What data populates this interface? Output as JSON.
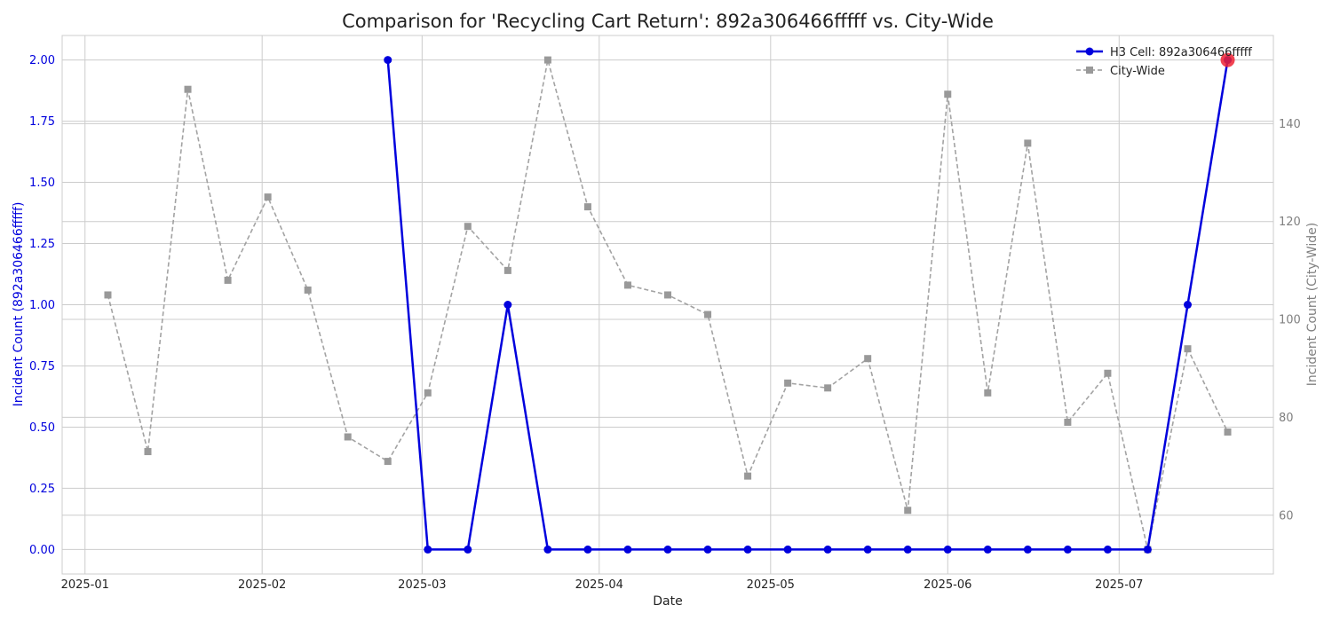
{
  "chart_data": {
    "type": "line",
    "title": "Comparison for 'Recycling Cart Return': 892a306466fffff vs. City-Wide",
    "xlabel": "Date",
    "ylabel_left": "Incident Count (892a306466fffff)",
    "ylabel_right": "Incident Count (City-Wide)",
    "x_ticks": [
      "2025-01",
      "2025-02",
      "2025-03",
      "2025-04",
      "2025-05",
      "2025-06",
      "2025-07"
    ],
    "y_left_ticks": [
      "0.00",
      "0.25",
      "0.50",
      "0.75",
      "1.00",
      "1.25",
      "1.50",
      "1.75",
      "2.00"
    ],
    "y_right_ticks": [
      "60",
      "80",
      "100",
      "120",
      "140"
    ],
    "ylim_left": [
      -0.1,
      2.1
    ],
    "ylim_right": [
      48,
      158
    ],
    "xlim": [
      "2024-12-28",
      "2025-07-28"
    ],
    "grid": true,
    "legend_position": "top-right",
    "series": [
      {
        "name": "H3 Cell: 892a306466fffff",
        "axis": "left",
        "color": "#0000dd",
        "style": "solid",
        "marker": "circle",
        "x": [
          "2025-02-23",
          "2025-03-02",
          "2025-03-09",
          "2025-03-16",
          "2025-03-23",
          "2025-03-30",
          "2025-04-06",
          "2025-04-13",
          "2025-04-20",
          "2025-04-27",
          "2025-05-04",
          "2025-05-11",
          "2025-05-18",
          "2025-05-25",
          "2025-06-01",
          "2025-06-08",
          "2025-06-15",
          "2025-06-22",
          "2025-06-29",
          "2025-07-06",
          "2025-07-13",
          "2025-07-20"
        ],
        "values": [
          2,
          0,
          0,
          1,
          0,
          0,
          0,
          0,
          0,
          0,
          0,
          0,
          0,
          0,
          0,
          0,
          0,
          0,
          0,
          0,
          1,
          2
        ]
      },
      {
        "name": "City-Wide",
        "axis": "right",
        "color": "#999999",
        "style": "dashed",
        "marker": "square",
        "x": [
          "2025-01-05",
          "2025-01-12",
          "2025-01-19",
          "2025-01-26",
          "2025-02-02",
          "2025-02-09",
          "2025-02-16",
          "2025-02-23",
          "2025-03-02",
          "2025-03-09",
          "2025-03-16",
          "2025-03-23",
          "2025-03-30",
          "2025-04-06",
          "2025-04-13",
          "2025-04-20",
          "2025-04-27",
          "2025-05-04",
          "2025-05-11",
          "2025-05-18",
          "2025-05-25",
          "2025-06-01",
          "2025-06-08",
          "2025-06-15",
          "2025-06-22",
          "2025-06-29",
          "2025-07-06",
          "2025-07-13",
          "2025-07-20"
        ],
        "values": [
          105,
          73,
          147,
          108,
          125,
          106,
          76,
          71,
          85,
          119,
          110,
          153,
          123,
          107,
          105,
          101,
          68,
          87,
          86,
          92,
          61,
          146,
          85,
          136,
          79,
          89,
          53,
          94,
          77
        ]
      }
    ],
    "highlight": {
      "x": "2025-07-20",
      "value": 2,
      "axis": "left",
      "color": "#ee2233"
    }
  }
}
